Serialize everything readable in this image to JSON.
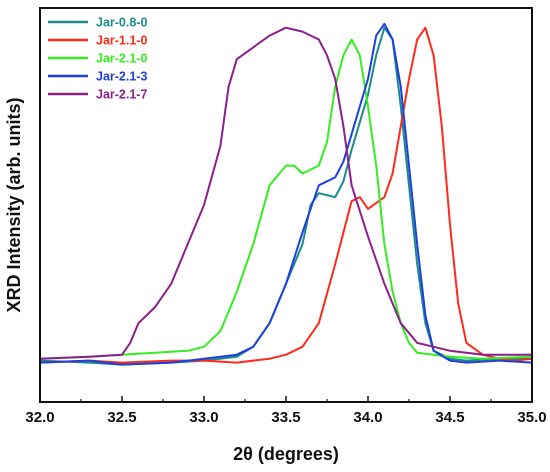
{
  "chart_data": {
    "type": "line",
    "xlabel": "2θ (degrees)",
    "ylabel": "XRD Intensity (arb. units)",
    "xlim": [
      32.0,
      35.0
    ],
    "ylim": [
      0,
      100
    ],
    "x_ticks": [
      "32.0",
      "32.5",
      "33.0",
      "33.5",
      "34.0",
      "34.5",
      "35.0"
    ],
    "grid": false,
    "legend_position": "top-left",
    "series": [
      {
        "name": "Jar-0.8-0",
        "color": "#1a8a8a",
        "points": [
          [
            32.0,
            10.5
          ],
          [
            32.3,
            10.0
          ],
          [
            32.5,
            9.5
          ],
          [
            32.8,
            10.0
          ],
          [
            33.0,
            10.5
          ],
          [
            33.2,
            11.5
          ],
          [
            33.3,
            14.0
          ],
          [
            33.4,
            20.0
          ],
          [
            33.5,
            30.0
          ],
          [
            33.6,
            40.0
          ],
          [
            33.65,
            50.0
          ],
          [
            33.7,
            53.0
          ],
          [
            33.8,
            52.0
          ],
          [
            33.85,
            56.0
          ],
          [
            33.9,
            64.0
          ],
          [
            34.0,
            78.0
          ],
          [
            34.05,
            88.0
          ],
          [
            34.1,
            95.0
          ],
          [
            34.15,
            92.0
          ],
          [
            34.2,
            75.0
          ],
          [
            34.25,
            55.0
          ],
          [
            34.3,
            35.0
          ],
          [
            34.35,
            20.0
          ],
          [
            34.4,
            13.0
          ],
          [
            34.5,
            11.0
          ],
          [
            34.6,
            10.5
          ],
          [
            34.8,
            11.0
          ],
          [
            35.0,
            11.0
          ]
        ]
      },
      {
        "name": "Jar-1.1-0",
        "color": "#ff2a1a",
        "points": [
          [
            32.0,
            10.0
          ],
          [
            32.3,
            10.5
          ],
          [
            32.5,
            10.0
          ],
          [
            32.8,
            10.5
          ],
          [
            33.0,
            10.5
          ],
          [
            33.2,
            10.0
          ],
          [
            33.4,
            11.0
          ],
          [
            33.5,
            12.0
          ],
          [
            33.6,
            14.0
          ],
          [
            33.7,
            20.0
          ],
          [
            33.8,
            35.0
          ],
          [
            33.85,
            43.0
          ],
          [
            33.9,
            51.0
          ],
          [
            33.95,
            52.0
          ],
          [
            34.0,
            49.0
          ],
          [
            34.1,
            52.0
          ],
          [
            34.15,
            58.0
          ],
          [
            34.2,
            70.0
          ],
          [
            34.25,
            82.0
          ],
          [
            34.3,
            92.0
          ],
          [
            34.35,
            95.0
          ],
          [
            34.4,
            88.0
          ],
          [
            34.45,
            70.0
          ],
          [
            34.5,
            45.0
          ],
          [
            34.55,
            25.0
          ],
          [
            34.6,
            15.0
          ],
          [
            34.7,
            12.0
          ],
          [
            34.8,
            11.0
          ],
          [
            34.9,
            10.5
          ],
          [
            35.0,
            11.0
          ]
        ]
      },
      {
        "name": "Jar-2.1-0",
        "color": "#33ee1f",
        "points": [
          [
            32.0,
            11.0
          ],
          [
            32.3,
            11.5
          ],
          [
            32.5,
            12.0
          ],
          [
            32.7,
            12.5
          ],
          [
            32.9,
            13.0
          ],
          [
            33.0,
            14.0
          ],
          [
            33.1,
            18.0
          ],
          [
            33.2,
            28.0
          ],
          [
            33.3,
            40.0
          ],
          [
            33.4,
            55.0
          ],
          [
            33.5,
            60.0
          ],
          [
            33.55,
            60.0
          ],
          [
            33.6,
            58.0
          ],
          [
            33.7,
            60.0
          ],
          [
            33.75,
            66.0
          ],
          [
            33.8,
            80.0
          ],
          [
            33.85,
            88.0
          ],
          [
            33.9,
            92.0
          ],
          [
            33.95,
            88.0
          ],
          [
            34.0,
            75.0
          ],
          [
            34.05,
            60.0
          ],
          [
            34.1,
            40.0
          ],
          [
            34.15,
            28.0
          ],
          [
            34.2,
            20.0
          ],
          [
            34.25,
            15.0
          ],
          [
            34.3,
            12.5
          ],
          [
            34.5,
            11.5
          ],
          [
            34.7,
            11.0
          ],
          [
            35.0,
            11.5
          ]
        ]
      },
      {
        "name": "Jar-2.1-3",
        "color": "#1f3fdd",
        "points": [
          [
            32.0,
            10.0
          ],
          [
            32.3,
            10.5
          ],
          [
            32.5,
            9.5
          ],
          [
            32.8,
            10.0
          ],
          [
            33.0,
            11.0
          ],
          [
            33.2,
            12.0
          ],
          [
            33.3,
            14.0
          ],
          [
            33.4,
            20.0
          ],
          [
            33.5,
            30.0
          ],
          [
            33.6,
            43.0
          ],
          [
            33.7,
            55.0
          ],
          [
            33.8,
            57.0
          ],
          [
            33.85,
            61.0
          ],
          [
            33.9,
            68.0
          ],
          [
            34.0,
            82.0
          ],
          [
            34.05,
            93.0
          ],
          [
            34.1,
            96.0
          ],
          [
            34.15,
            92.0
          ],
          [
            34.2,
            80.0
          ],
          [
            34.25,
            60.0
          ],
          [
            34.3,
            40.0
          ],
          [
            34.35,
            22.0
          ],
          [
            34.4,
            13.0
          ],
          [
            34.5,
            10.5
          ],
          [
            34.6,
            10.0
          ],
          [
            34.8,
            10.5
          ],
          [
            35.0,
            10.0
          ]
        ]
      },
      {
        "name": "Jar-2.1-7",
        "color": "#8a1f8a",
        "points": [
          [
            32.0,
            11.0
          ],
          [
            32.3,
            11.5
          ],
          [
            32.5,
            12.0
          ],
          [
            32.55,
            15.0
          ],
          [
            32.6,
            20.0
          ],
          [
            32.7,
            24.0
          ],
          [
            32.8,
            30.0
          ],
          [
            32.9,
            40.0
          ],
          [
            33.0,
            50.0
          ],
          [
            33.1,
            65.0
          ],
          [
            33.15,
            80.0
          ],
          [
            33.2,
            87.0
          ],
          [
            33.3,
            90.0
          ],
          [
            33.4,
            93.0
          ],
          [
            33.5,
            95.0
          ],
          [
            33.6,
            94.0
          ],
          [
            33.7,
            92.0
          ],
          [
            33.75,
            88.0
          ],
          [
            33.8,
            82.0
          ],
          [
            33.85,
            70.0
          ],
          [
            33.9,
            55.0
          ],
          [
            34.0,
            42.0
          ],
          [
            34.1,
            30.0
          ],
          [
            34.2,
            20.0
          ],
          [
            34.3,
            15.0
          ],
          [
            34.4,
            14.0
          ],
          [
            34.5,
            13.0
          ],
          [
            34.7,
            12.0
          ],
          [
            35.0,
            12.0
          ]
        ]
      }
    ]
  }
}
